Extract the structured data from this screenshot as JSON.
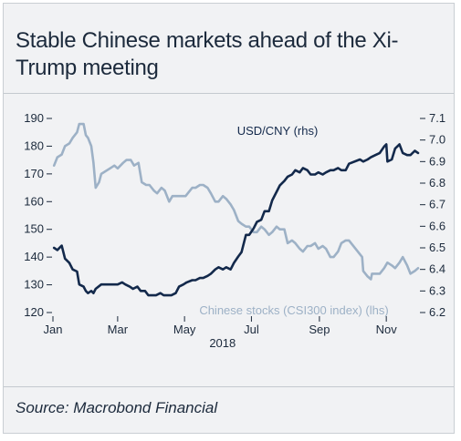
{
  "chart_data": {
    "type": "line",
    "title": "Stable Chinese markets ahead of the Xi-Trump meeting",
    "source": "Source: Macrobond Financial",
    "x_range": [
      "2018-01-01",
      "2018-11-30"
    ],
    "x_ticks": [
      {
        "label": "Jan",
        "date": "2018-01-01"
      },
      {
        "label": "Mar",
        "date": "2018-03-01"
      },
      {
        "label": "May",
        "date": "2018-05-01"
      },
      {
        "label": "Jul",
        "date": "2018-07-01"
      },
      {
        "label": "Sep",
        "date": "2018-09-01"
      },
      {
        "label": "Nov",
        "date": "2018-11-01"
      }
    ],
    "year_label": "2018",
    "y_left": {
      "min": 120,
      "max": 190,
      "ticks": [
        120,
        130,
        140,
        150,
        160,
        170,
        180,
        190
      ]
    },
    "y_right": {
      "min": 6.2,
      "max": 7.1,
      "ticks": [
        "6.2",
        "6.3",
        "6.4",
        "6.5",
        "6.6",
        "6.7",
        "6.8",
        "6.9",
        "7.0",
        "7.1"
      ]
    },
    "grid": false,
    "series": [
      {
        "name": "Chinese stocks (CSI300 index) (lhs)",
        "axis": "left",
        "color": "#9db1c6",
        "points": [
          [
            "2018-01-02",
            173
          ],
          [
            "2018-01-05",
            176
          ],
          [
            "2018-01-09",
            177
          ],
          [
            "2018-01-12",
            180
          ],
          [
            "2018-01-16",
            181
          ],
          [
            "2018-01-19",
            183
          ],
          [
            "2018-01-23",
            185
          ],
          [
            "2018-01-25",
            188
          ],
          [
            "2018-01-29",
            188
          ],
          [
            "2018-01-31",
            184
          ],
          [
            "2018-02-02",
            183
          ],
          [
            "2018-02-05",
            180
          ],
          [
            "2018-02-07",
            174
          ],
          [
            "2018-02-09",
            165
          ],
          [
            "2018-02-12",
            167
          ],
          [
            "2018-02-14",
            170
          ],
          [
            "2018-02-22",
            172
          ],
          [
            "2018-02-26",
            173
          ],
          [
            "2018-03-01",
            172
          ],
          [
            "2018-03-06",
            174
          ],
          [
            "2018-03-09",
            175
          ],
          [
            "2018-03-13",
            175
          ],
          [
            "2018-03-16",
            173
          ],
          [
            "2018-03-20",
            174
          ],
          [
            "2018-03-23",
            167
          ],
          [
            "2018-03-27",
            166
          ],
          [
            "2018-03-30",
            166
          ],
          [
            "2018-04-03",
            164
          ],
          [
            "2018-04-06",
            163
          ],
          [
            "2018-04-10",
            165
          ],
          [
            "2018-04-13",
            164
          ],
          [
            "2018-04-17",
            160
          ],
          [
            "2018-04-20",
            162
          ],
          [
            "2018-04-24",
            162
          ],
          [
            "2018-04-27",
            162
          ],
          [
            "2018-05-02",
            162
          ],
          [
            "2018-05-04",
            163
          ],
          [
            "2018-05-08",
            165
          ],
          [
            "2018-05-11",
            165
          ],
          [
            "2018-05-15",
            166
          ],
          [
            "2018-05-18",
            166
          ],
          [
            "2018-05-22",
            165
          ],
          [
            "2018-05-25",
            163
          ],
          [
            "2018-05-29",
            160
          ],
          [
            "2018-06-01",
            160
          ],
          [
            "2018-06-05",
            162
          ],
          [
            "2018-06-08",
            161
          ],
          [
            "2018-06-12",
            159
          ],
          [
            "2018-06-15",
            157
          ],
          [
            "2018-06-19",
            153
          ],
          [
            "2018-06-22",
            152
          ],
          [
            "2018-06-26",
            151
          ],
          [
            "2018-06-29",
            151
          ],
          [
            "2018-07-03",
            149
          ],
          [
            "2018-07-06",
            149
          ],
          [
            "2018-07-10",
            151
          ],
          [
            "2018-07-13",
            150
          ],
          [
            "2018-07-17",
            148
          ],
          [
            "2018-07-20",
            149
          ],
          [
            "2018-07-24",
            151
          ],
          [
            "2018-07-27",
            150
          ],
          [
            "2018-07-31",
            150
          ],
          [
            "2018-08-03",
            145
          ],
          [
            "2018-08-07",
            146
          ],
          [
            "2018-08-10",
            145
          ],
          [
            "2018-08-14",
            143
          ],
          [
            "2018-08-17",
            142
          ],
          [
            "2018-08-21",
            144
          ],
          [
            "2018-08-24",
            144
          ],
          [
            "2018-08-28",
            145
          ],
          [
            "2018-08-31",
            143
          ],
          [
            "2018-09-04",
            144
          ],
          [
            "2018-09-07",
            143
          ],
          [
            "2018-09-11",
            140
          ],
          [
            "2018-09-14",
            140
          ],
          [
            "2018-09-18",
            142
          ],
          [
            "2018-09-21",
            145
          ],
          [
            "2018-09-25",
            146
          ],
          [
            "2018-09-28",
            146
          ],
          [
            "2018-10-08",
            141
          ],
          [
            "2018-10-10",
            140
          ],
          [
            "2018-10-11",
            135
          ],
          [
            "2018-10-15",
            133
          ],
          [
            "2018-10-18",
            132
          ],
          [
            "2018-10-19",
            134
          ],
          [
            "2018-10-23",
            134
          ],
          [
            "2018-10-26",
            134
          ],
          [
            "2018-10-30",
            136
          ],
          [
            "2018-11-02",
            138
          ],
          [
            "2018-11-06",
            137
          ],
          [
            "2018-11-09",
            136
          ],
          [
            "2018-11-13",
            138
          ],
          [
            "2018-11-16",
            140
          ],
          [
            "2018-11-20",
            137
          ],
          [
            "2018-11-23",
            134
          ],
          [
            "2018-11-27",
            135
          ],
          [
            "2018-11-30",
            136
          ]
        ]
      },
      {
        "name": "USD/CNY (rhs)",
        "axis": "right",
        "color": "#13294b",
        "points": [
          [
            "2018-01-02",
            6.5
          ],
          [
            "2018-01-05",
            6.49
          ],
          [
            "2018-01-09",
            6.51
          ],
          [
            "2018-01-12",
            6.45
          ],
          [
            "2018-01-16",
            6.43
          ],
          [
            "2018-01-19",
            6.4
          ],
          [
            "2018-01-23",
            6.39
          ],
          [
            "2018-01-25",
            6.33
          ],
          [
            "2018-01-29",
            6.32
          ],
          [
            "2018-01-31",
            6.3
          ],
          [
            "2018-02-02",
            6.29
          ],
          [
            "2018-02-05",
            6.3
          ],
          [
            "2018-02-07",
            6.29
          ],
          [
            "2018-02-09",
            6.31
          ],
          [
            "2018-02-14",
            6.33
          ],
          [
            "2018-02-22",
            6.33
          ],
          [
            "2018-02-27",
            6.33
          ],
          [
            "2018-03-01",
            6.33
          ],
          [
            "2018-03-05",
            6.34
          ],
          [
            "2018-03-08",
            6.33
          ],
          [
            "2018-03-12",
            6.32
          ],
          [
            "2018-03-15",
            6.31
          ],
          [
            "2018-03-19",
            6.32
          ],
          [
            "2018-03-22",
            6.3
          ],
          [
            "2018-03-26",
            6.3
          ],
          [
            "2018-03-29",
            6.28
          ],
          [
            "2018-04-02",
            6.28
          ],
          [
            "2018-04-05",
            6.28
          ],
          [
            "2018-04-09",
            6.29
          ],
          [
            "2018-04-12",
            6.28
          ],
          [
            "2018-04-16",
            6.28
          ],
          [
            "2018-04-19",
            6.28
          ],
          [
            "2018-04-23",
            6.29
          ],
          [
            "2018-04-26",
            6.32
          ],
          [
            "2018-04-30",
            6.33
          ],
          [
            "2018-05-03",
            6.34
          ],
          [
            "2018-05-08",
            6.35
          ],
          [
            "2018-05-11",
            6.35
          ],
          [
            "2018-05-15",
            6.36
          ],
          [
            "2018-05-18",
            6.36
          ],
          [
            "2018-05-22",
            6.37
          ],
          [
            "2018-05-25",
            6.38
          ],
          [
            "2018-05-29",
            6.4
          ],
          [
            "2018-06-01",
            6.41
          ],
          [
            "2018-06-05",
            6.4
          ],
          [
            "2018-06-08",
            6.41
          ],
          [
            "2018-06-12",
            6.4
          ],
          [
            "2018-06-15",
            6.43
          ],
          [
            "2018-06-19",
            6.46
          ],
          [
            "2018-06-22",
            6.48
          ],
          [
            "2018-06-26",
            6.56
          ],
          [
            "2018-06-29",
            6.56
          ],
          [
            "2018-07-03",
            6.59
          ],
          [
            "2018-07-06",
            6.62
          ],
          [
            "2018-07-10",
            6.63
          ],
          [
            "2018-07-13",
            6.67
          ],
          [
            "2018-07-17",
            6.67
          ],
          [
            "2018-07-20",
            6.72
          ],
          [
            "2018-07-24",
            6.76
          ],
          [
            "2018-07-27",
            6.79
          ],
          [
            "2018-07-31",
            6.81
          ],
          [
            "2018-08-03",
            6.83
          ],
          [
            "2018-08-07",
            6.84
          ],
          [
            "2018-08-10",
            6.86
          ],
          [
            "2018-08-14",
            6.85
          ],
          [
            "2018-08-17",
            6.87
          ],
          [
            "2018-08-21",
            6.86
          ],
          [
            "2018-08-24",
            6.84
          ],
          [
            "2018-08-28",
            6.84
          ],
          [
            "2018-08-31",
            6.85
          ],
          [
            "2018-09-04",
            6.84
          ],
          [
            "2018-09-07",
            6.85
          ],
          [
            "2018-09-11",
            6.86
          ],
          [
            "2018-09-14",
            6.86
          ],
          [
            "2018-09-18",
            6.87
          ],
          [
            "2018-09-21",
            6.86
          ],
          [
            "2018-09-25",
            6.86
          ],
          [
            "2018-09-28",
            6.89
          ],
          [
            "2018-10-08",
            6.91
          ],
          [
            "2018-10-11",
            6.9
          ],
          [
            "2018-10-15",
            6.91
          ],
          [
            "2018-10-18",
            6.92
          ],
          [
            "2018-10-22",
            6.93
          ],
          [
            "2018-10-26",
            6.94
          ],
          [
            "2018-10-30",
            6.97
          ],
          [
            "2018-11-01",
            6.98
          ],
          [
            "2018-11-02",
            6.9
          ],
          [
            "2018-11-06",
            6.91
          ],
          [
            "2018-11-09",
            6.96
          ],
          [
            "2018-11-13",
            6.98
          ],
          [
            "2018-11-16",
            6.94
          ],
          [
            "2018-11-20",
            6.93
          ],
          [
            "2018-11-23",
            6.93
          ],
          [
            "2018-11-27",
            6.95
          ],
          [
            "2018-11-30",
            6.94
          ]
        ]
      }
    ]
  }
}
